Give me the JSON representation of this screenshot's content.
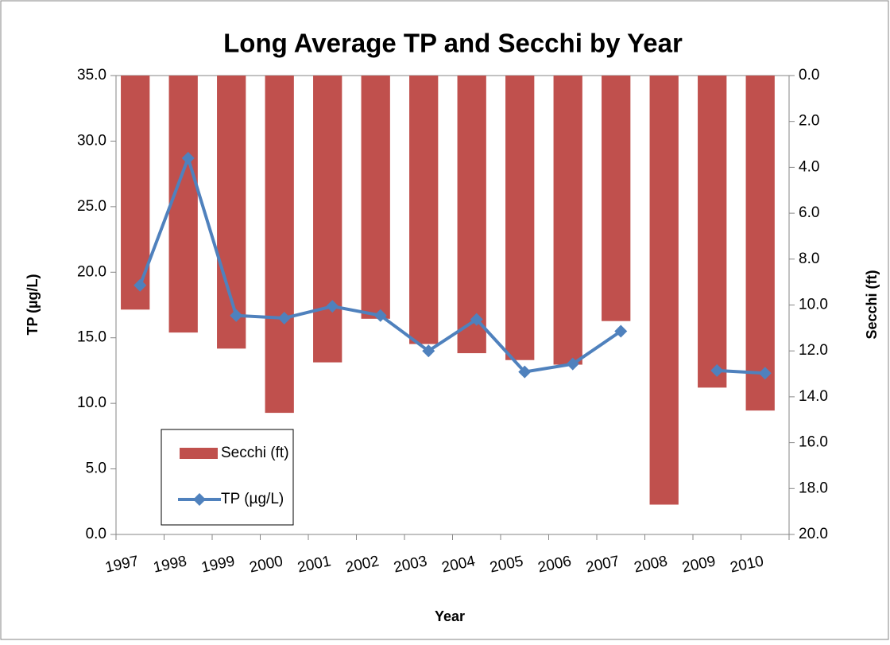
{
  "chart_data": {
    "type": "bar_line",
    "title": "Long Average TP and Secchi by Year",
    "x_label": "Year",
    "y_label": "TP (µg/L)",
    "y2_label": "Secchi (ft)",
    "categories": [
      "1997",
      "1998",
      "1999",
      "2000",
      "2001",
      "2002",
      "2003",
      "2004",
      "2005",
      "2006",
      "2007",
      "2008",
      "2009",
      "2010"
    ],
    "series": [
      {
        "name": "Secchi (ft)",
        "type": "bar",
        "axis": "y2",
        "color": "#c0504d",
        "values": [
          10.2,
          11.2,
          11.9,
          14.7,
          12.5,
          10.6,
          11.7,
          12.1,
          12.4,
          12.6,
          10.7,
          18.7,
          13.6,
          14.6
        ]
      },
      {
        "name": "TP (µg/L)",
        "type": "line",
        "color": "#4f81bd",
        "values": [
          19.0,
          28.7,
          16.7,
          16.5,
          17.4,
          16.7,
          14.0,
          16.4,
          12.4,
          13.0,
          15.5,
          null,
          12.5,
          12.3
        ]
      }
    ],
    "ylim": [
      0,
      35
    ],
    "yticks": [
      {
        "value": 0,
        "label": "0.0"
      },
      {
        "value": 5,
        "label": "5.0"
      },
      {
        "value": 10,
        "label": "10.0"
      },
      {
        "value": 15,
        "label": "15.0"
      },
      {
        "value": 20,
        "label": "20.0"
      },
      {
        "value": 25,
        "label": "25.0"
      },
      {
        "value": 30,
        "label": "30.0"
      },
      {
        "value": 35,
        "label": "35.0"
      }
    ],
    "y2lim": [
      20,
      0
    ],
    "y2_inverted": true,
    "y2ticks": [
      {
        "value": 0,
        "label": "0.0"
      },
      {
        "value": 2,
        "label": "2.0"
      },
      {
        "value": 4,
        "label": "4.0"
      },
      {
        "value": 6,
        "label": "6.0"
      },
      {
        "value": 8,
        "label": "8.0"
      },
      {
        "value": 10,
        "label": "10.0"
      },
      {
        "value": 12,
        "label": "12.0"
      },
      {
        "value": 14,
        "label": "14.0"
      },
      {
        "value": 16,
        "label": "16.0"
      },
      {
        "value": 18,
        "label": "18.0"
      },
      {
        "value": 20,
        "label": "20.0"
      }
    ],
    "legend": "lower-left"
  }
}
